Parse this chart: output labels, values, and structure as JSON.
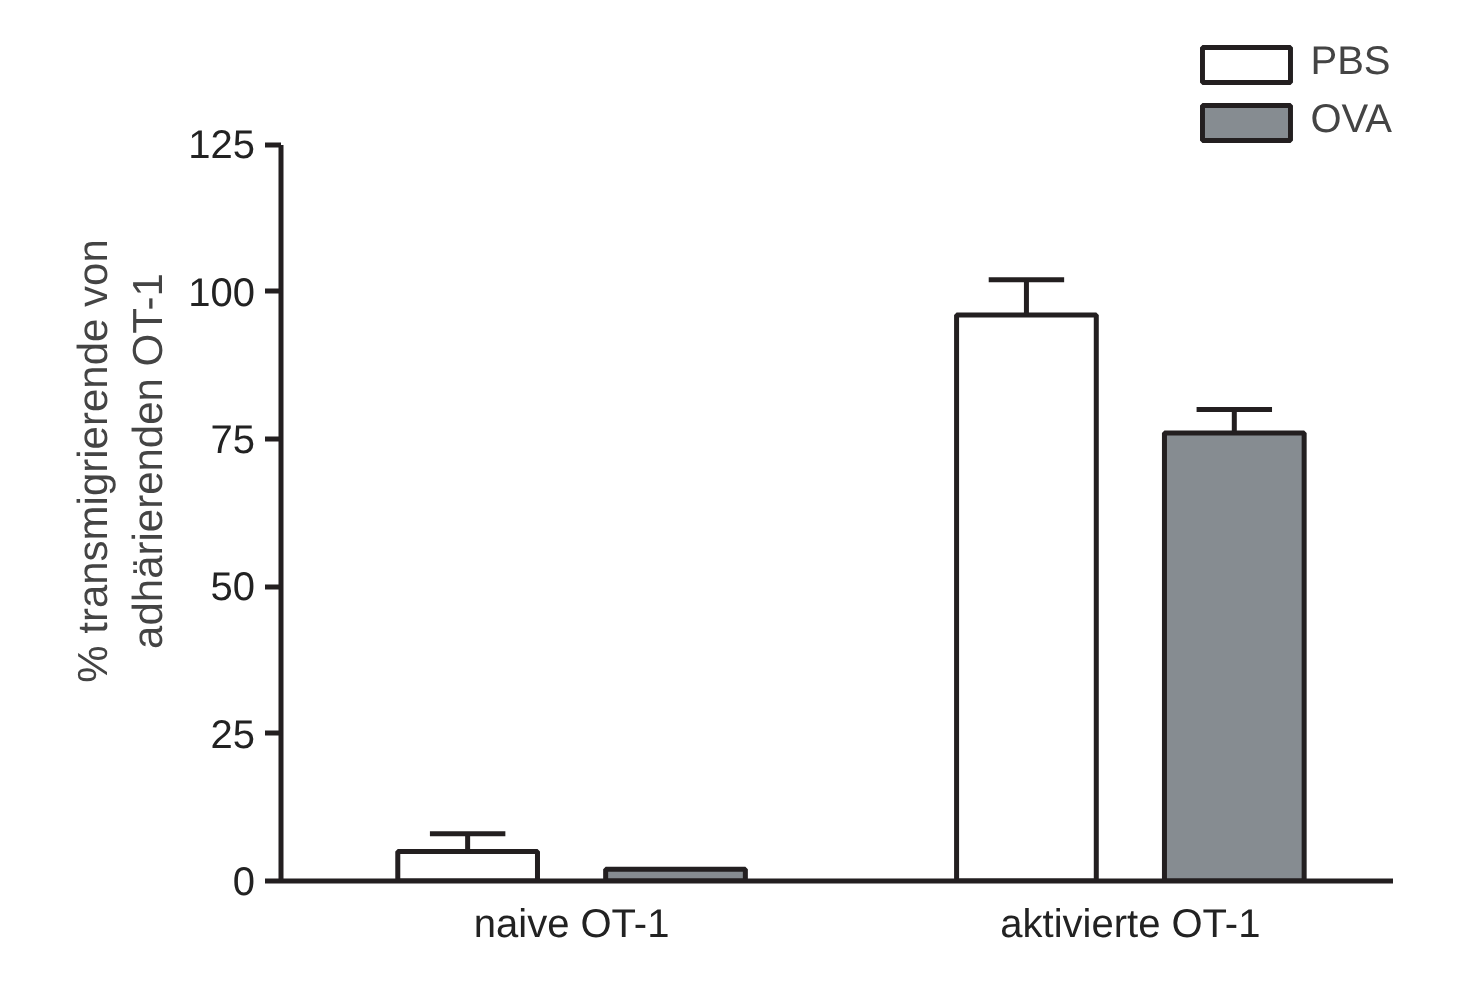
{
  "chart_data": {
    "type": "bar",
    "ylabel": "% transmigrierende von\nadhärierenden OT-1",
    "categories": [
      "naive OT-1",
      "aktivierte OT-1"
    ],
    "series": [
      {
        "name": "PBS",
        "color": "#ffffff",
        "values": [
          5,
          96
        ],
        "errors": [
          [
            5,
            8
          ],
          [
            96,
            102
          ]
        ]
      },
      {
        "name": "OVA",
        "color": "#868c91",
        "values": [
          2,
          76
        ],
        "errors": [
          null,
          [
            76,
            80
          ]
        ]
      }
    ],
    "ylim": [
      0,
      125
    ],
    "yticks": [
      0,
      25,
      50,
      75,
      100,
      125
    ],
    "grid": false,
    "legend": "top right"
  }
}
